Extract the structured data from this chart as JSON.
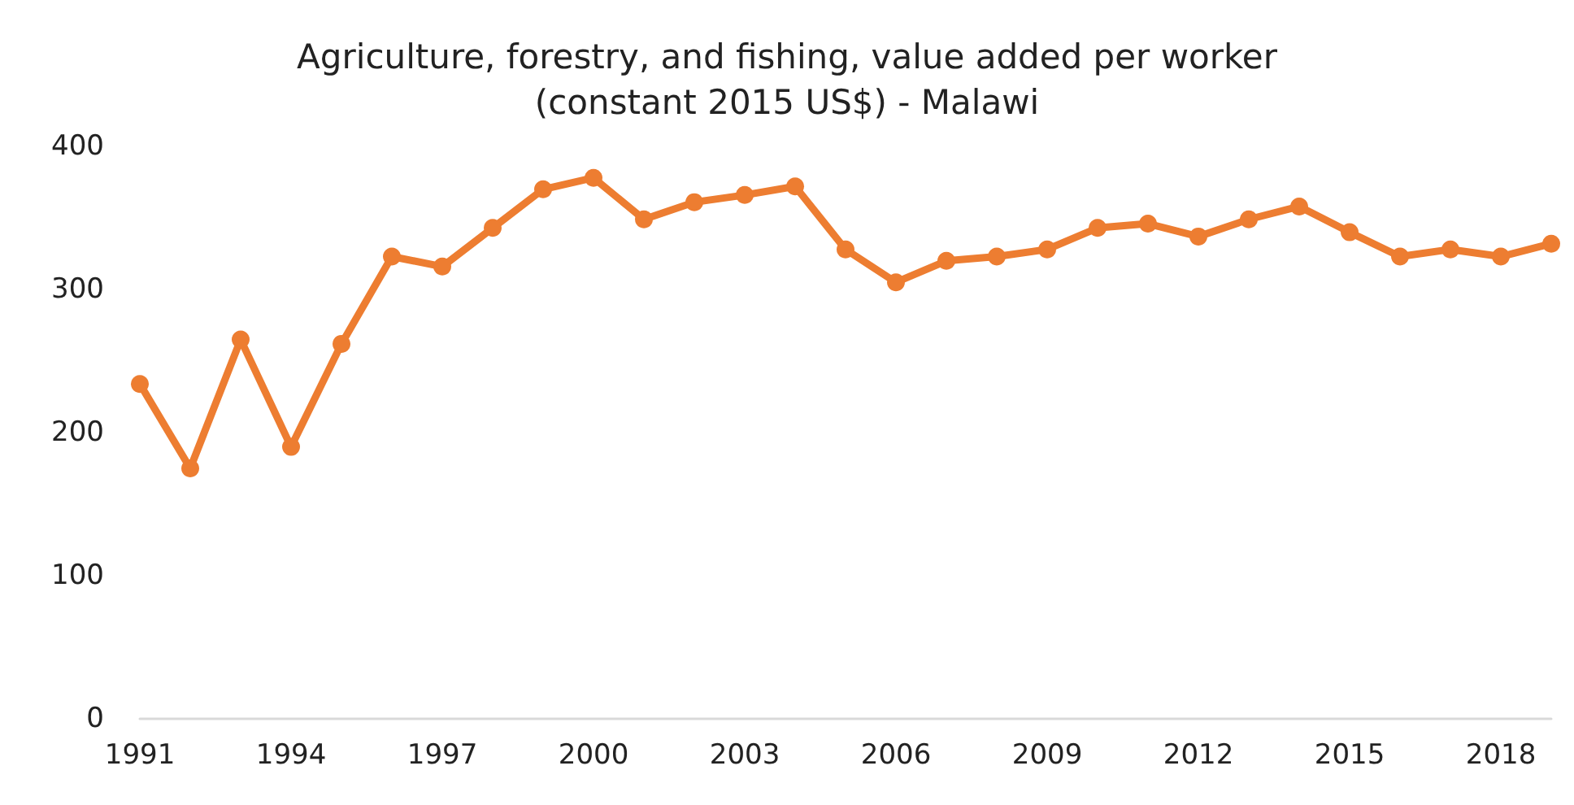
{
  "chart_data": {
    "type": "line",
    "title": "Agriculture, forestry, and fishing, value added per worker\n(constant 2015 US$) - Malawi",
    "x": [
      1991,
      1992,
      1993,
      1994,
      1995,
      1996,
      1997,
      1998,
      1999,
      2000,
      2001,
      2002,
      2003,
      2004,
      2005,
      2006,
      2007,
      2008,
      2009,
      2010,
      2011,
      2012,
      2013,
      2014,
      2015,
      2016,
      2017,
      2018,
      2019
    ],
    "series": [
      {
        "color": "#ed7d31",
        "values": [
          234,
          175,
          265,
          190,
          262,
          323,
          316,
          343,
          370,
          378,
          349,
          361,
          366,
          372,
          328,
          305,
          320,
          323,
          328,
          343,
          346,
          337,
          349,
          358,
          340,
          323,
          328,
          323,
          332
        ]
      }
    ],
    "xlim": [
      1991,
      2019
    ],
    "xticks": [
      1991,
      1994,
      1997,
      2000,
      2003,
      2006,
      2009,
      2012,
      2015,
      2018
    ],
    "ylim": [
      0,
      400
    ],
    "yticks": [
      0,
      100,
      200,
      300,
      400
    ],
    "grid": false,
    "marker": "circle",
    "line_style": "solid"
  }
}
